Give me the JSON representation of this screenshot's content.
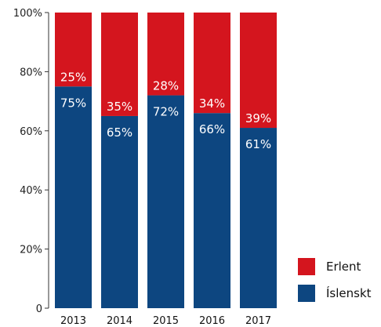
{
  "chart_data": {
    "type": "bar",
    "stacked": true,
    "categories": [
      "2013",
      "2014",
      "2015",
      "2016",
      "2017"
    ],
    "series": [
      {
        "name": "Íslenskt",
        "color": "#0d4680",
        "values": [
          75,
          65,
          72,
          66,
          61
        ],
        "labels": [
          "75%",
          "65%",
          "72%",
          "66%",
          "61%"
        ]
      },
      {
        "name": "Erlent",
        "color": "#d4151e",
        "values": [
          25,
          35,
          28,
          34,
          39
        ],
        "labels": [
          "25%",
          "35%",
          "28%",
          "34%",
          "39%"
        ]
      }
    ],
    "ylim": [
      0,
      100
    ],
    "yticks": [
      0,
      20,
      40,
      60,
      80,
      100
    ],
    "ytick_labels": [
      "0",
      "20%",
      "40%",
      "60%",
      "80%",
      "100%"
    ],
    "title": "",
    "xlabel": "",
    "ylabel": "",
    "grid": false,
    "legend": {
      "placement": "bottom-right",
      "entries": [
        "Erlent",
        "Íslenskt"
      ]
    }
  }
}
